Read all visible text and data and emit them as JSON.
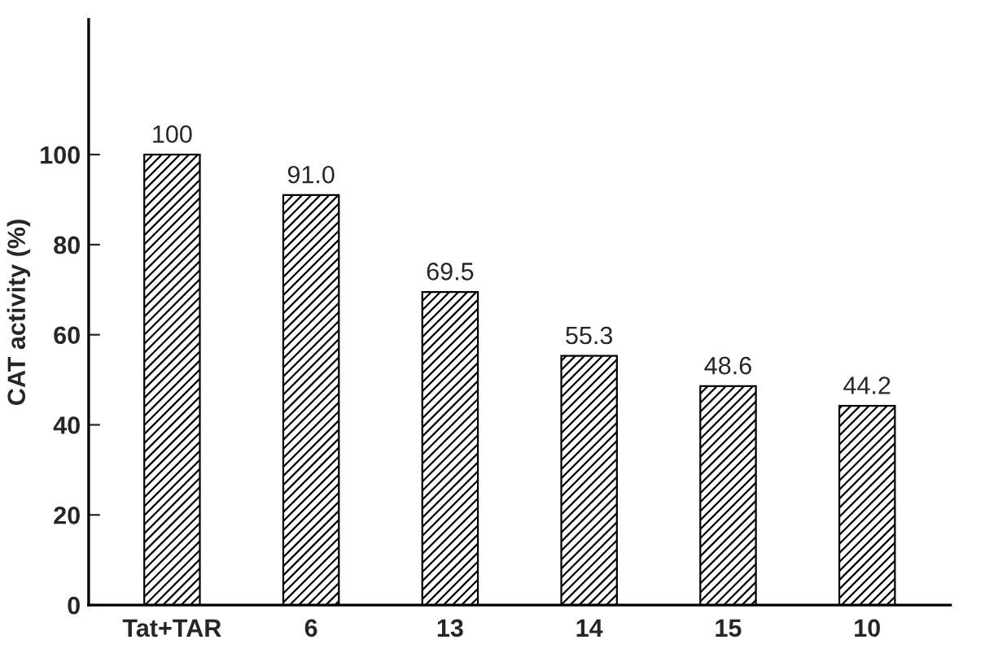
{
  "chart_data": {
    "type": "bar",
    "ylabel": "CAT activity (%)",
    "categories": [
      "Tat+TAR",
      "6",
      "13",
      "14",
      "15",
      "10"
    ],
    "values": [
      100,
      91.0,
      69.5,
      55.3,
      48.6,
      44.2
    ],
    "value_labels": [
      "100",
      "91.0",
      "69.5",
      "55.3",
      "48.6",
      "44.2"
    ],
    "color": "#000000",
    "ylim": [
      0,
      130
    ],
    "yticks": [
      0,
      20,
      40,
      60,
      80,
      100
    ],
    "grid": false,
    "legend": false
  }
}
